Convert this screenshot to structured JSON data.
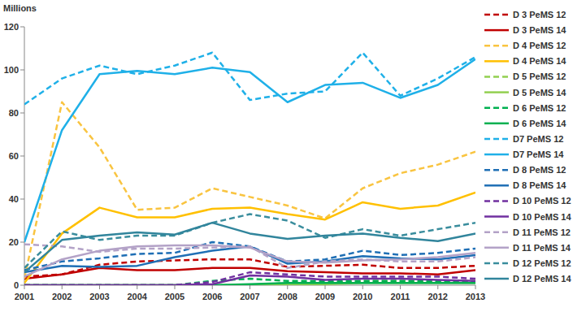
{
  "chart_data": {
    "type": "line",
    "y_label": "Millions",
    "x": [
      2001,
      2002,
      2003,
      2004,
      2005,
      2006,
      2007,
      2008,
      2009,
      2010,
      2011,
      2012,
      2013
    ],
    "xlim": [
      2001,
      2013
    ],
    "xticks": [
      2001,
      2002,
      2003,
      2004,
      2005,
      2006,
      2007,
      2008,
      2009,
      2010,
      2011,
      2012,
      2013
    ],
    "ylim": [
      0,
      120
    ],
    "yticks": [
      0,
      20,
      40,
      60,
      80,
      100,
      120
    ],
    "grid": false,
    "legend": "right",
    "series": [
      {
        "name": "D 3 PeMS 12",
        "color": "#C00000",
        "line_style": "dashed",
        "values": [
          4,
          5,
          9.5,
          11,
          11.5,
          12,
          12,
          8.5,
          9,
          9.5,
          8,
          8,
          9
        ]
      },
      {
        "name": "D 3 PeMS 14",
        "color": "#C00000",
        "line_style": "solid",
        "values": [
          3,
          5,
          8,
          7,
          7,
          8,
          8,
          6.5,
          6,
          5.5,
          5.5,
          5,
          7
        ]
      },
      {
        "name": "D 4 PeMS 12",
        "color": "#F9C440",
        "line_style": "dashed",
        "values": [
          3,
          85,
          64,
          35,
          36,
          45,
          41,
          37,
          31,
          45,
          52,
          56,
          62
        ]
      },
      {
        "name": "D 4 PeMS 14",
        "color": "#FFC000",
        "line_style": "solid",
        "values": [
          1,
          24,
          36,
          31.5,
          31.5,
          35.5,
          36,
          33,
          30.5,
          38.5,
          35.5,
          37,
          43
        ]
      },
      {
        "name": "D 5 PeMS 12",
        "color": "#92D050",
        "line_style": "dashed",
        "values": [
          0,
          0,
          0,
          0,
          0,
          0,
          0,
          1,
          1,
          2,
          2,
          2,
          2
        ]
      },
      {
        "name": "D 5 PeMS 14",
        "color": "#92D050",
        "line_style": "solid",
        "values": [
          0,
          0,
          0,
          0,
          0,
          0,
          0,
          0.5,
          0.5,
          1,
          1,
          1,
          1
        ]
      },
      {
        "name": "D 6 PeMS 12",
        "color": "#00B050",
        "line_style": "dashed",
        "values": [
          0,
          0,
          0,
          0,
          0,
          2,
          3,
          2,
          2,
          2,
          2,
          2,
          1.5
        ]
      },
      {
        "name": "D 6 PeMS 14",
        "color": "#00B050",
        "line_style": "solid",
        "values": [
          0,
          0,
          0,
          0,
          0,
          0,
          0.5,
          1,
          1,
          1,
          1,
          1,
          1
        ]
      },
      {
        "name": "D7 PeMS 12",
        "color": "#1FB0E8",
        "line_style": "dashed",
        "values": [
          84,
          96,
          102,
          98,
          102,
          108,
          86,
          89,
          90,
          108,
          88,
          96,
          106
        ]
      },
      {
        "name": "D7 PeMS 14",
        "color": "#1FB0E8",
        "line_style": "solid",
        "values": [
          20,
          72,
          98,
          99.5,
          98,
          101,
          99,
          85,
          93,
          94,
          87,
          93,
          105
        ]
      },
      {
        "name": "D 8 PeMS 12",
        "color": "#1F6FB5",
        "line_style": "dashed",
        "values": [
          7,
          11,
          12.5,
          14.5,
          15,
          20,
          18,
          11,
          12,
          16,
          14,
          15,
          17
        ]
      },
      {
        "name": "D 8 PeMS 14",
        "color": "#1F6FB5",
        "line_style": "solid",
        "values": [
          6,
          9,
          8.5,
          9,
          13,
          16,
          18,
          10,
          11,
          13.5,
          12.5,
          12,
          14
        ]
      },
      {
        "name": "D 10 PeMS 12",
        "color": "#7030A0",
        "line_style": "dashed",
        "values": [
          0,
          0,
          0,
          0,
          0,
          1.5,
          6,
          5,
          4,
          4,
          4,
          4,
          3
        ]
      },
      {
        "name": "D 10 PeMS 14",
        "color": "#7030A0",
        "line_style": "solid",
        "values": [
          0,
          0,
          0,
          0,
          0,
          0.5,
          4.5,
          4,
          2.5,
          3,
          3,
          2.5,
          2
        ]
      },
      {
        "name": "D 11 PeMS 12",
        "color": "#B3A2C7",
        "line_style": "dashed",
        "values": [
          19,
          18,
          15.5,
          17,
          17,
          17.5,
          18,
          8,
          11,
          12,
          11,
          11,
          13
        ]
      },
      {
        "name": "D 11 PeMS 14",
        "color": "#B3A2C7",
        "line_style": "solid",
        "values": [
          4,
          12,
          16,
          18,
          18.5,
          18.5,
          17.5,
          11,
          10.5,
          11.5,
          12,
          13,
          15
        ]
      },
      {
        "name": "D 12 PeMS 12",
        "color": "#3A8D9D",
        "line_style": "dashed",
        "values": [
          8,
          25,
          21,
          23,
          23,
          29,
          33,
          30,
          22,
          26,
          23,
          26,
          29
        ]
      },
      {
        "name": "D 12 PeMS 14",
        "color": "#31859C",
        "line_style": "solid",
        "values": [
          6,
          21,
          23,
          24.5,
          23.5,
          29,
          24,
          21.5,
          23,
          24,
          22,
          20.5,
          24
        ]
      }
    ]
  }
}
